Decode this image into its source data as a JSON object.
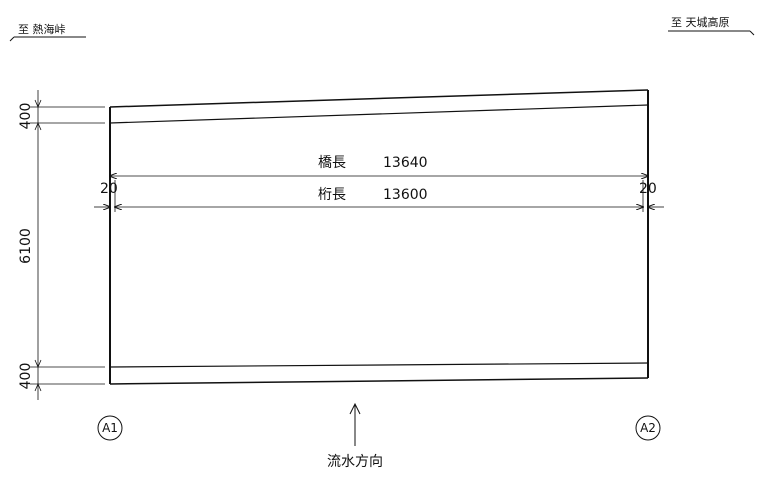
{
  "direction_left": "至 熱海峠",
  "direction_right": "至 天城高原",
  "bridge_length_label": "橋長",
  "bridge_length_value": "13640",
  "girder_length_label": "桁長",
  "girder_length_value": "13600",
  "end_gap_left": "20",
  "end_gap_right": "20",
  "width_top": "400",
  "width_middle": "6100",
  "width_bottom": "400",
  "abutment_left": "A1",
  "abutment_right": "A2",
  "flow_direction": "流水方向"
}
